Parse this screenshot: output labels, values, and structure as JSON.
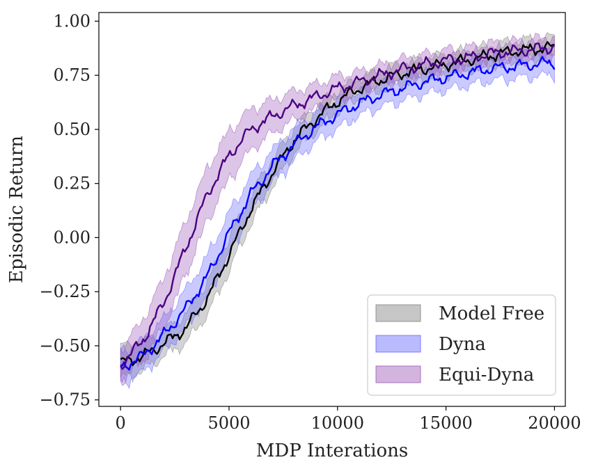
{
  "chart_data": {
    "type": "line",
    "title": "",
    "xlabel": "MDP Interations",
    "ylabel": "Episodic Return",
    "xlim": [
      -1000,
      20500
    ],
    "ylim": [
      -0.78,
      1.04
    ],
    "xticks": [
      0,
      5000,
      10000,
      15000,
      20000
    ],
    "xtick_labels": [
      "0",
      "5000",
      "10000",
      "15000",
      "20000"
    ],
    "yticks": [
      1.0,
      0.75,
      0.5,
      0.25,
      0.0,
      -0.25,
      -0.5,
      -0.75
    ],
    "ytick_labels": [
      "1.00",
      "0.75",
      "0.50",
      "0.25",
      "0.00",
      "−0.25",
      "−0.50",
      "−0.75"
    ],
    "grid": false,
    "legend_position": "lower-right",
    "x": [
      0,
      1000,
      2000,
      3000,
      4000,
      5000,
      6000,
      7000,
      8000,
      9000,
      10000,
      11000,
      12000,
      13000,
      14000,
      15000,
      16000,
      17000,
      18000,
      19000,
      20000
    ],
    "series": [
      {
        "name": "Model Free",
        "color": "#000000",
        "band_color": "#808080",
        "values": [
          -0.58,
          -0.55,
          -0.49,
          -0.42,
          -0.28,
          -0.08,
          0.13,
          0.3,
          0.45,
          0.55,
          0.63,
          0.69,
          0.73,
          0.76,
          0.78,
          0.8,
          0.82,
          0.84,
          0.86,
          0.87,
          0.88
        ],
        "band_halfwidth": [
          0.08,
          0.07,
          0.06,
          0.07,
          0.08,
          0.08,
          0.07,
          0.07,
          0.06,
          0.06,
          0.05,
          0.05,
          0.05,
          0.05,
          0.05,
          0.05,
          0.05,
          0.05,
          0.05,
          0.05,
          0.05
        ]
      },
      {
        "name": "Dyna",
        "color": "#0000ff",
        "band_color": "#6666ff",
        "values": [
          -0.6,
          -0.55,
          -0.45,
          -0.33,
          -0.18,
          0.02,
          0.2,
          0.33,
          0.43,
          0.51,
          0.57,
          0.62,
          0.66,
          0.69,
          0.72,
          0.74,
          0.76,
          0.78,
          0.79,
          0.8,
          0.81
        ],
        "band_halfwidth": [
          0.08,
          0.08,
          0.08,
          0.09,
          0.1,
          0.1,
          0.09,
          0.08,
          0.08,
          0.07,
          0.07,
          0.06,
          0.06,
          0.06,
          0.06,
          0.06,
          0.06,
          0.06,
          0.06,
          0.06,
          0.06
        ]
      },
      {
        "name": "Equi-Dyna",
        "color": "#4b0082",
        "band_color": "#9b59b6",
        "values": [
          -0.59,
          -0.48,
          -0.3,
          -0.05,
          0.2,
          0.38,
          0.5,
          0.56,
          0.61,
          0.65,
          0.69,
          0.72,
          0.75,
          0.78,
          0.8,
          0.82,
          0.83,
          0.85,
          0.86,
          0.87,
          0.88
        ],
        "band_halfwidth": [
          0.08,
          0.1,
          0.12,
          0.13,
          0.13,
          0.12,
          0.1,
          0.08,
          0.07,
          0.06,
          0.06,
          0.05,
          0.05,
          0.05,
          0.05,
          0.05,
          0.05,
          0.05,
          0.05,
          0.05,
          0.05
        ]
      }
    ]
  }
}
